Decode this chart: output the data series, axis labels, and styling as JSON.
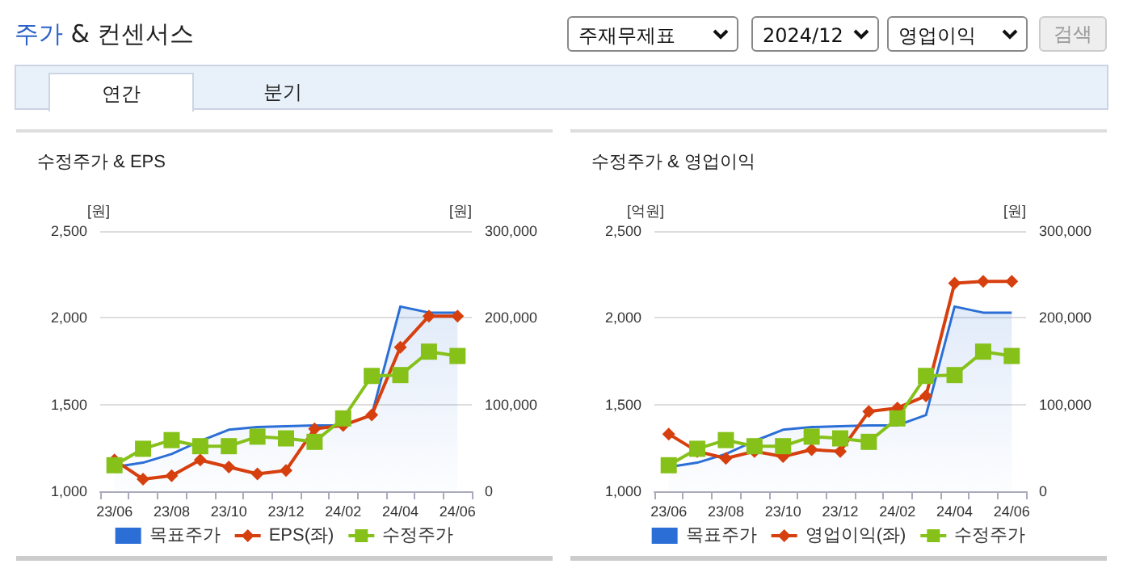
{
  "chart_data": [
    {
      "type": "line",
      "title": "수정주가 & EPS",
      "ylabel": "[원]",
      "y2label": "[원]",
      "annotations": [
        "주가 & 컨센서스",
        "주재무제표",
        "2024/12",
        "영업이익",
        "검색",
        "연간",
        "분기"
      ],
      "categories": [
        "23/06",
        null,
        "23/08",
        null,
        "23/10",
        null,
        "23/12",
        null,
        "24/02",
        null,
        "24/04",
        null,
        "24/06"
      ],
      "series": [
        {
          "name": "목표주가",
          "type": "area",
          "axis": "y2",
          "color": "#2b6fd6",
          "marker": "none",
          "values": [
            28000,
            33000,
            43000,
            58000,
            71000,
            74000,
            75000,
            76000,
            76000,
            88000,
            213000,
            206000,
            206000
          ]
        },
        {
          "name": "EPS(좌)",
          "color": "#d63f0e",
          "marker": "diamond",
          "values": [
            1180,
            1070,
            1090,
            1180,
            1140,
            1100,
            1120,
            1360,
            1380,
            1440,
            1830,
            2010,
            2010
          ]
        },
        {
          "name": "수정주가",
          "axis": "y2",
          "color": "#86c11a",
          "marker": "square",
          "values": [
            30000,
            49000,
            59000,
            52000,
            52000,
            63000,
            61000,
            57000,
            84000,
            133000,
            134000,
            161000,
            156000
          ]
        }
      ],
      "ylim": [
        1000,
        2500
      ],
      "yticks": [
        {
          "value": 1000,
          "label": "1,000"
        },
        {
          "value": 1500,
          "label": "1,500"
        },
        {
          "value": 2000,
          "label": "2,000"
        },
        {
          "value": 2500,
          "label": "2,500"
        }
      ],
      "y2lim": [
        0,
        300000
      ],
      "y2ticks": [
        0,
        {
          "value": 100000,
          "label": "100,000"
        },
        {
          "value": 200000,
          "label": "200,000"
        },
        {
          "value": 300000,
          "label": "300,000"
        }
      ],
      "grid": "y",
      "legend": "bottom"
    },
    {
      "type": "line",
      "title": "수정주가 & 영업이익",
      "ylabel": "[억원]",
      "y2label": "[원]",
      "categories": [
        "23/06",
        null,
        "23/08",
        null,
        "23/10",
        null,
        "23/12",
        null,
        "24/02",
        null,
        "24/04",
        null,
        "24/06"
      ],
      "series": [
        {
          "name": "목표주가",
          "type": "area",
          "axis": "y2",
          "color": "#2b6fd6",
          "marker": "none",
          "values": [
            28000,
            33000,
            43000,
            58000,
            71000,
            74000,
            75000,
            76000,
            76000,
            88000,
            213000,
            206000,
            206000
          ]
        },
        {
          "name": "영업이익(좌)",
          "color": "#d63f0e",
          "marker": "diamond",
          "values": [
            1330,
            1230,
            1190,
            1230,
            1200,
            1240,
            1230,
            1460,
            1480,
            1550,
            2200,
            2210,
            2210
          ]
        },
        {
          "name": "수정주가",
          "axis": "y2",
          "color": "#86c11a",
          "marker": "square",
          "values": [
            30000,
            49000,
            59000,
            52000,
            52000,
            63000,
            61000,
            57000,
            84000,
            133000,
            134000,
            161000,
            156000
          ]
        }
      ],
      "ylim": [
        1000,
        2500
      ],
      "yticks": [
        {
          "value": 1000,
          "label": "1,000"
        },
        {
          "value": 1500,
          "label": "1,500"
        },
        {
          "value": 2000,
          "label": "2,000"
        },
        {
          "value": 2500,
          "label": "2,500"
        }
      ],
      "y2lim": [
        0,
        300000
      ],
      "y2ticks": [
        0,
        {
          "value": 100000,
          "label": "100,000"
        },
        {
          "value": 200000,
          "label": "200,000"
        },
        {
          "value": 300000,
          "label": "300,000"
        }
      ],
      "grid": "y",
      "legend": "bottom"
    }
  ]
}
